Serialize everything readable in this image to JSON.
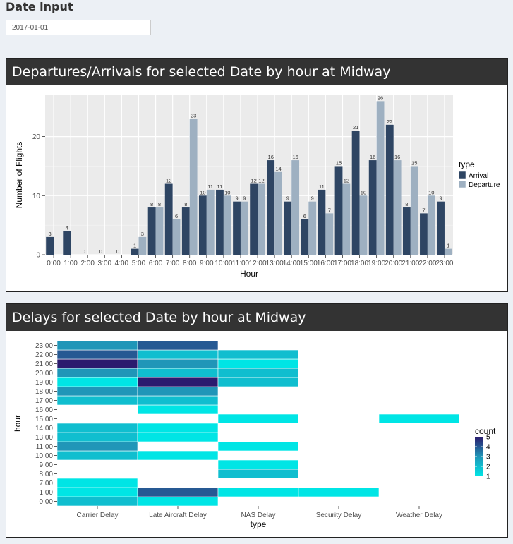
{
  "date_input": {
    "label": "Date input",
    "value": "2017-01-01"
  },
  "panels": {
    "departures": {
      "title": "Departures/Arrivals for selected Date by hour at Midway"
    },
    "delays": {
      "title": "Delays for selected Date by hour at Midway"
    }
  },
  "chart_data": [
    {
      "type": "bar",
      "title": "",
      "xlabel": "Hour",
      "ylabel": "Number of Flights",
      "ylim": [
        0,
        27
      ],
      "yticks": [
        0,
        10,
        20
      ],
      "grid": true,
      "legend": {
        "title": "type",
        "position": "right"
      },
      "categories": [
        "0:00",
        "1:00",
        "2:00",
        "3:00",
        "4:00",
        "5:00",
        "6:00",
        "7:00",
        "8:00",
        "9:00",
        "10:00",
        "11:00",
        "12:00",
        "13:00",
        "14:00",
        "15:00",
        "16:00",
        "17:00",
        "18:00",
        "19:00",
        "20:00",
        "21:00",
        "22:00",
        "23:00"
      ],
      "series": [
        {
          "name": "Arrival",
          "color": "#2e4563",
          "values": [
            3,
            4,
            0,
            0,
            0,
            1,
            8,
            12,
            8,
            10,
            11,
            9,
            12,
            16,
            9,
            6,
            11,
            15,
            21,
            16,
            22,
            8,
            7,
            9
          ]
        },
        {
          "name": "Departure",
          "color": "#9eb0c1",
          "values": [
            null,
            null,
            null,
            null,
            null,
            3,
            8,
            6,
            23,
            11,
            10,
            9,
            12,
            14,
            16,
            9,
            7,
            12,
            10,
            26,
            16,
            15,
            10,
            1
          ]
        }
      ]
    },
    {
      "type": "heatmap",
      "title": "",
      "xlabel": "type",
      "ylabel": "hour",
      "x_categories": [
        "Carrier Delay",
        "Late Aircraft Delay",
        "NAS Delay",
        "Security Delay",
        "Weather Delay"
      ],
      "y_categories": [
        "0:00",
        "1:00",
        "7:00",
        "8:00",
        "9:00",
        "10:00",
        "11:00",
        "13:00",
        "14:00",
        "15:00",
        "16:00",
        "17:00",
        "18:00",
        "19:00",
        "20:00",
        "21:00",
        "22:00",
        "23:00"
      ],
      "y_ticks": [
        "0:00",
        "1:00",
        "7:00",
        "8:00",
        "9:00",
        "10:00",
        "11:00",
        "13:00",
        "14:00",
        "15:00",
        "16:00",
        "17:00",
        "18:00",
        "19:00",
        "20:00",
        "21:00",
        "22:00",
        "23:00"
      ],
      "legend": {
        "title": "count",
        "position": "right",
        "ticks": [
          5,
          4,
          3,
          2,
          1
        ],
        "low_color": "#00e5e5",
        "mid_color": "#2096b8",
        "high_color": "#2b1b6e"
      },
      "cells": [
        {
          "x": "Carrier Delay",
          "y": "0:00",
          "count": 2
        },
        {
          "x": "Late Aircraft Delay",
          "y": "0:00",
          "count": 1
        },
        {
          "x": "Carrier Delay",
          "y": "1:00",
          "count": 1
        },
        {
          "x": "Late Aircraft Delay",
          "y": "1:00",
          "count": 4
        },
        {
          "x": "NAS Delay",
          "y": "1:00",
          "count": 1
        },
        {
          "x": "Security Delay",
          "y": "1:00",
          "count": 1
        },
        {
          "x": "Carrier Delay",
          "y": "7:00",
          "count": 1
        },
        {
          "x": "NAS Delay",
          "y": "8:00",
          "count": 2
        },
        {
          "x": "NAS Delay",
          "y": "9:00",
          "count": 1
        },
        {
          "x": "Carrier Delay",
          "y": "10:00",
          "count": 2
        },
        {
          "x": "Late Aircraft Delay",
          "y": "10:00",
          "count": 1
        },
        {
          "x": "Carrier Delay",
          "y": "11:00",
          "count": 3
        },
        {
          "x": "NAS Delay",
          "y": "11:00",
          "count": 1
        },
        {
          "x": "Carrier Delay",
          "y": "13:00",
          "count": 2
        },
        {
          "x": "Late Aircraft Delay",
          "y": "13:00",
          "count": 1
        },
        {
          "x": "Carrier Delay",
          "y": "14:00",
          "count": 2
        },
        {
          "x": "Late Aircraft Delay",
          "y": "14:00",
          "count": 1
        },
        {
          "x": "NAS Delay",
          "y": "15:00",
          "count": 1
        },
        {
          "x": "Weather Delay",
          "y": "15:00",
          "count": 1
        },
        {
          "x": "Late Aircraft Delay",
          "y": "16:00",
          "count": 1
        },
        {
          "x": "Carrier Delay",
          "y": "17:00",
          "count": 2
        },
        {
          "x": "Late Aircraft Delay",
          "y": "17:00",
          "count": 2
        },
        {
          "x": "Carrier Delay",
          "y": "18:00",
          "count": 3
        },
        {
          "x": "Late Aircraft Delay",
          "y": "18:00",
          "count": 3
        },
        {
          "x": "Carrier Delay",
          "y": "19:00",
          "count": 1
        },
        {
          "x": "Late Aircraft Delay",
          "y": "19:00",
          "count": 5
        },
        {
          "x": "NAS Delay",
          "y": "19:00",
          "count": 2
        },
        {
          "x": "Carrier Delay",
          "y": "20:00",
          "count": 3
        },
        {
          "x": "Late Aircraft Delay",
          "y": "20:00",
          "count": 2
        },
        {
          "x": "NAS Delay",
          "y": "20:00",
          "count": 2
        },
        {
          "x": "Carrier Delay",
          "y": "21:00",
          "count": 5
        },
        {
          "x": "Late Aircraft Delay",
          "y": "21:00",
          "count": 3
        },
        {
          "x": "NAS Delay",
          "y": "21:00",
          "count": 1
        },
        {
          "x": "Carrier Delay",
          "y": "22:00",
          "count": 4
        },
        {
          "x": "Late Aircraft Delay",
          "y": "22:00",
          "count": 2
        },
        {
          "x": "NAS Delay",
          "y": "22:00",
          "count": 2
        },
        {
          "x": "Carrier Delay",
          "y": "23:00",
          "count": 3
        },
        {
          "x": "Late Aircraft Delay",
          "y": "23:00",
          "count": 4
        }
      ]
    }
  ]
}
